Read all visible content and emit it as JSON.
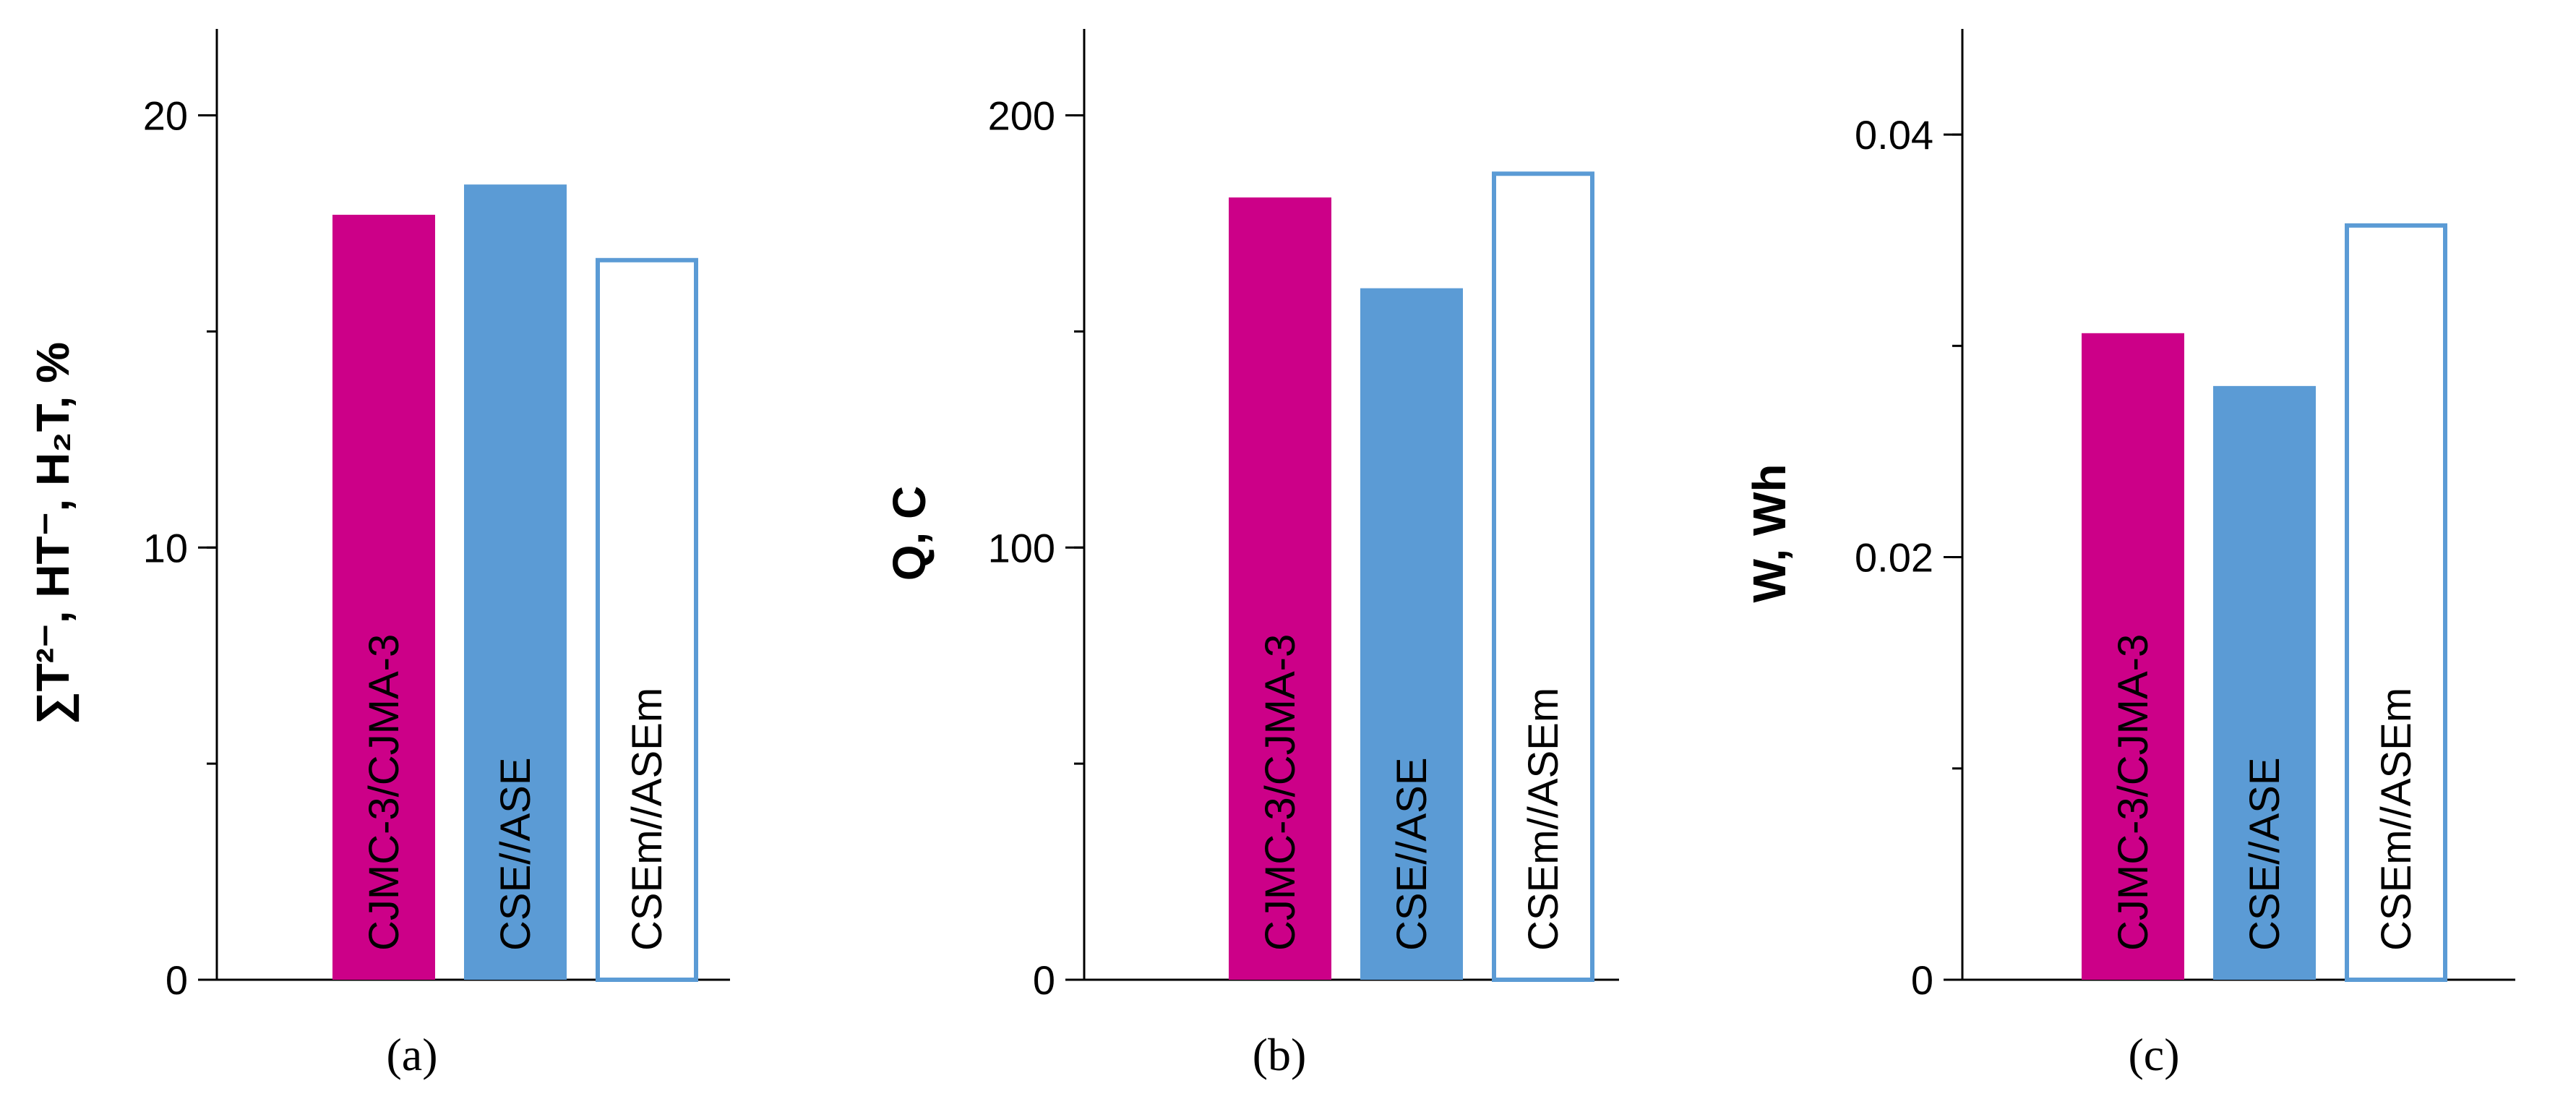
{
  "colors": {
    "magenta": "#CC0088",
    "blue": "#5B9BD5",
    "hollow_fill": "#FFFFFF",
    "hollow_stroke": "#5B9BD5"
  },
  "chart_data": [
    {
      "type": "bar",
      "panel_label": "(a)",
      "ylabel": "∑T²⁻, HT⁻, H₂T, %",
      "ylim": [
        0,
        22
      ],
      "yticks": [
        0,
        10,
        20
      ],
      "minor_step": 5,
      "categories": [
        "CJMC-3/CJMA-3",
        "CSE//ASE",
        "CSEm//ASEm"
      ],
      "values": [
        17.7,
        18.4,
        16.7
      ],
      "grid": false
    },
    {
      "type": "bar",
      "panel_label": "(b)",
      "ylabel": "Q, C",
      "ylim": [
        0,
        220
      ],
      "yticks": [
        0,
        100,
        200
      ],
      "minor_step": 50,
      "categories": [
        "CJMC-3/CJMA-3",
        "CSE//ASE",
        "CSEm//ASEm"
      ],
      "values": [
        181,
        160,
        187
      ],
      "grid": false
    },
    {
      "type": "bar",
      "panel_label": "(c)",
      "ylabel": "W, Wh",
      "ylim": [
        0,
        0.045
      ],
      "yticks": [
        "0",
        "0.02",
        "0.04"
      ],
      "ytick_values": [
        0,
        0.02,
        0.04
      ],
      "minor_step": 0.01,
      "categories": [
        "CJMC-3/CJMA-3",
        "CSE//ASE",
        "CSEm//ASEm"
      ],
      "values": [
        0.0306,
        0.0281,
        0.0358
      ],
      "grid": false
    }
  ]
}
